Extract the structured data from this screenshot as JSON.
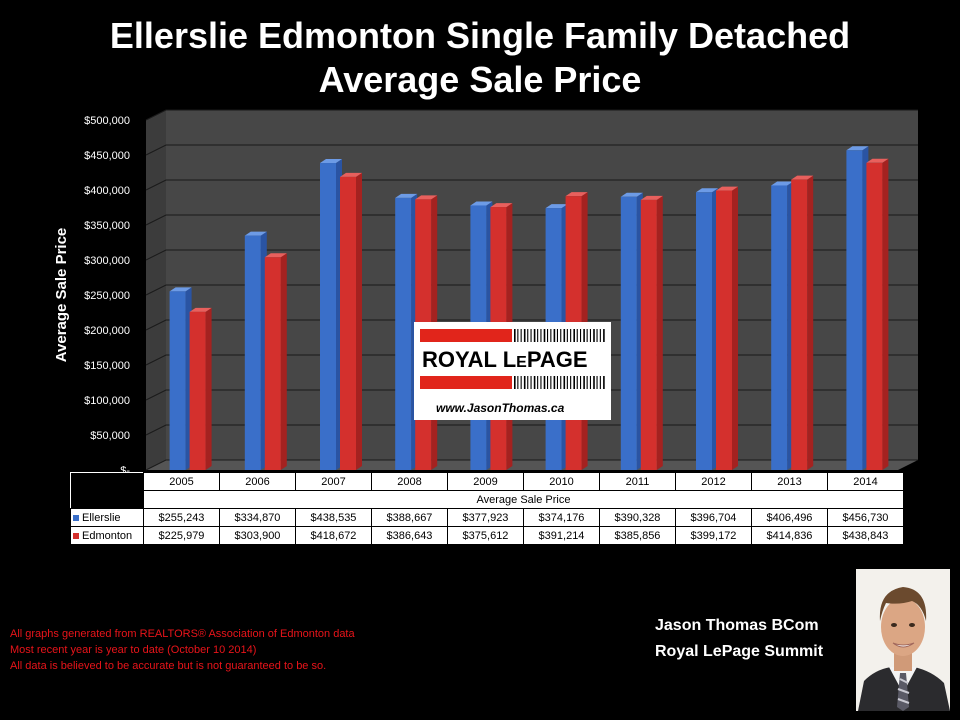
{
  "title_line1": "Ellerslie Edmonton Single Family Detached",
  "title_line2": "Average Sale Price",
  "chart_data": {
    "type": "bar",
    "ylabel": "Average Sale Price",
    "xlabel": "Average Sale Price",
    "categories": [
      "2005",
      "2006",
      "2007",
      "2008",
      "2009",
      "2010",
      "2011",
      "2012",
      "2013",
      "2014"
    ],
    "ylim": [
      0,
      500000
    ],
    "yticks": [
      0,
      50000,
      100000,
      150000,
      200000,
      250000,
      300000,
      350000,
      400000,
      450000,
      500000
    ],
    "ytick_labels": [
      "$-",
      "$50,000",
      "$100,000",
      "$150,000",
      "$200,000",
      "$250,000",
      "$300,000",
      "$350,000",
      "$400,000",
      "$450,000",
      "$500,000"
    ],
    "grid": true,
    "series": [
      {
        "name": "Ellerslie",
        "color": "#3a6fc9",
        "values": [
          255243,
          334870,
          438535,
          388667,
          377923,
          374176,
          390328,
          396704,
          406496,
          456730
        ],
        "labels": [
          "$255,243",
          "$334,870",
          "$438,535",
          "$388,667",
          "$377,923",
          "$374,176",
          "$390,328",
          "$396,704",
          "$406,496",
          "$456,730"
        ]
      },
      {
        "name": "Edmonton",
        "color": "#d4302d",
        "values": [
          225979,
          303900,
          418672,
          386643,
          375612,
          391214,
          385856,
          399172,
          414836,
          438843
        ],
        "labels": [
          "$225,979",
          "$303,900",
          "$418,672",
          "$386,643",
          "$375,612",
          "$391,214",
          "$385,856",
          "$399,172",
          "$414,836",
          "$438,843"
        ]
      }
    ]
  },
  "logo": {
    "brand": "ROYAL LEPAGE",
    "url": "www.JasonThomas.ca"
  },
  "disclaimer": [
    "All graphs generated from REALTORS® Association of Edmonton data",
    "Most recent year is year to date (October 10 2014)",
    "All data is believed to be accurate but is not guaranteed to be so."
  ],
  "agent": {
    "name": "Jason Thomas BCom",
    "office": "Royal LePage Summit"
  }
}
